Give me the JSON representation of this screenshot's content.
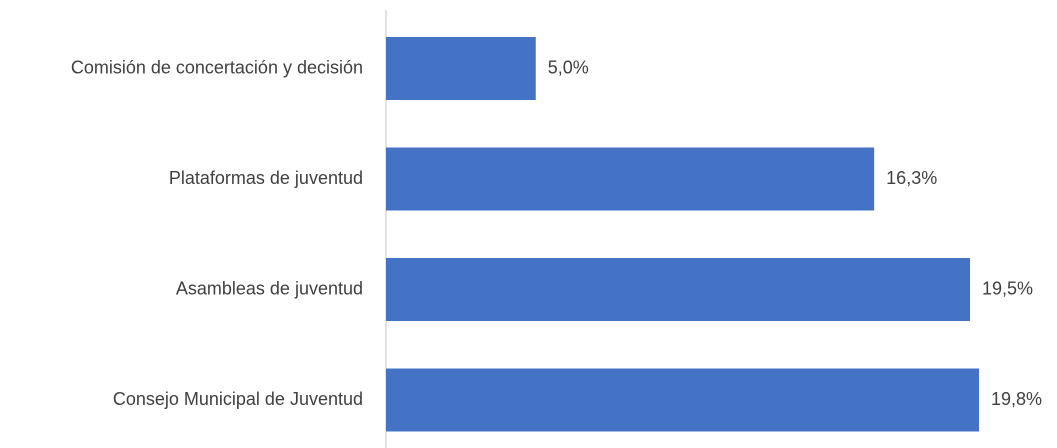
{
  "chart_data": {
    "type": "bar",
    "orientation": "horizontal",
    "categories": [
      "Comisión de concertación y decisión",
      "Plataformas de juventud",
      "Asambleas de juventud",
      "Consejo Municipal de Juventud"
    ],
    "values": [
      5.0,
      16.3,
      19.5,
      19.8
    ],
    "value_labels": [
      "5,0%",
      "16,3%",
      "19,5%",
      "19,8%"
    ],
    "unit": "%",
    "xlim": [
      0,
      19.8
    ],
    "grid": false,
    "legend": "none",
    "bar_color": "#4472c4",
    "axis_color": "#d9d9d9",
    "text_color": "#404040"
  }
}
